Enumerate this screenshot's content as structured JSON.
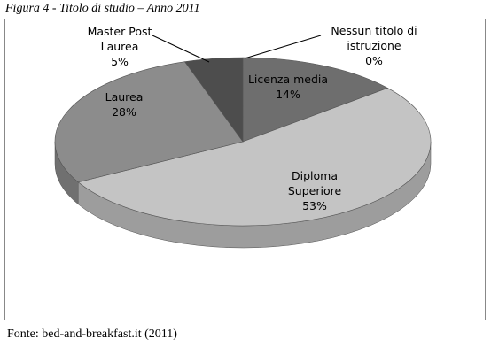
{
  "chart_data": {
    "type": "pie3d",
    "title": "Figura 4 - Titolo di studio – Anno 2011",
    "source": "Fonte: bed-and-breakfast.it (2011)",
    "categories": [
      "Nessun titolo di istruzione",
      "Licenza media",
      "Diploma Superiore",
      "Laurea",
      "Master Post Laurea"
    ],
    "values": [
      0,
      14,
      53,
      28,
      5
    ],
    "value_labels": [
      "0%",
      "14%",
      "53%",
      "28%",
      "5%"
    ],
    "colors": [
      "#e8e8e8",
      "#6e6e6e",
      "#c4c4c4",
      "#8c8c8c",
      "#4d4d4d"
    ]
  }
}
